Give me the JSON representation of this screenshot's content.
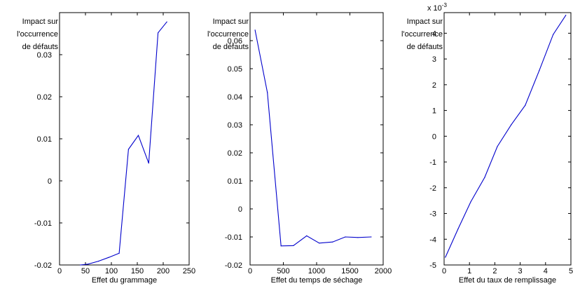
{
  "chart_data": [
    {
      "type": "line",
      "ylabel_lines": [
        "Impact sur",
        "l'occurrence",
        "de défauts"
      ],
      "xlabel": "Effet du grammage",
      "xlim": [
        0,
        250
      ],
      "ylim": [
        -0.02,
        0.04
      ],
      "x_ticks": [
        0,
        50,
        100,
        150,
        200,
        250
      ],
      "y_ticks": [
        -0.02,
        -0.01,
        0,
        0.01,
        0.02,
        0.03
      ],
      "x_tick_labels": [
        "0",
        "50",
        "100",
        "150",
        "200",
        "250"
      ],
      "y_tick_labels": [
        "-0.02",
        "-0.01",
        "0",
        "0.01",
        "0.02",
        "0.03"
      ],
      "exponent_label": "",
      "x": [
        40,
        55,
        75,
        95,
        115,
        133,
        152,
        172,
        190,
        207
      ],
      "y": [
        -0.02,
        -0.0198,
        -0.0191,
        -0.0182,
        -0.0172,
        0.0075,
        0.0108,
        0.0042,
        0.0352,
        0.0378
      ]
    },
    {
      "type": "line",
      "ylabel_lines": [
        "Impact sur",
        "l'occurrence",
        "de défauts"
      ],
      "xlabel": "Effet du temps de séchage",
      "xlim": [
        0,
        2000
      ],
      "ylim": [
        -0.02,
        0.07
      ],
      "x_ticks": [
        0,
        500,
        1000,
        1500,
        2000
      ],
      "y_ticks": [
        -0.02,
        -0.01,
        0,
        0.01,
        0.02,
        0.03,
        0.04,
        0.05,
        0.06
      ],
      "x_tick_labels": [
        "0",
        "500",
        "1000",
        "1500",
        "2000"
      ],
      "y_tick_labels": [
        "-0.02",
        "-0.01",
        "0",
        "0.01",
        "0.02",
        "0.03",
        "0.04",
        "0.05",
        "0.06"
      ],
      "exponent_label": "",
      "x": [
        75,
        260,
        465,
        650,
        850,
        1040,
        1240,
        1430,
        1620,
        1820
      ],
      "y": [
        0.0638,
        0.0415,
        -0.0132,
        -0.0131,
        -0.0096,
        -0.0122,
        -0.0118,
        -0.01,
        -0.0102,
        -0.01
      ]
    },
    {
      "type": "line",
      "ylabel_lines": [
        "Impact sur",
        "l'occurrence",
        "de défauts"
      ],
      "xlabel": "Effet du taux de remplissage",
      "xlim": [
        0,
        5
      ],
      "ylim": [
        -5,
        4.8
      ],
      "x_ticks": [
        0,
        1,
        2,
        3,
        4,
        5
      ],
      "y_ticks": [
        -5,
        -4,
        -3,
        -2,
        -1,
        0,
        1,
        2,
        3,
        4
      ],
      "x_tick_labels": [
        "0",
        "1",
        "2",
        "3",
        "4",
        "5"
      ],
      "y_tick_labels": [
        "-5",
        "-4",
        "-3",
        "-2",
        "-1",
        "0",
        "1",
        "2",
        "3",
        "4"
      ],
      "exponent_label": "x 10",
      "exponent_power": "-3",
      "x": [
        0.05,
        0.55,
        1.05,
        1.6,
        2.1,
        2.65,
        3.2,
        3.75,
        4.3,
        4.8
      ],
      "y": [
        -4.7,
        -3.6,
        -2.55,
        -1.6,
        -0.4,
        0.45,
        1.2,
        2.55,
        3.95,
        4.7
      ]
    }
  ]
}
